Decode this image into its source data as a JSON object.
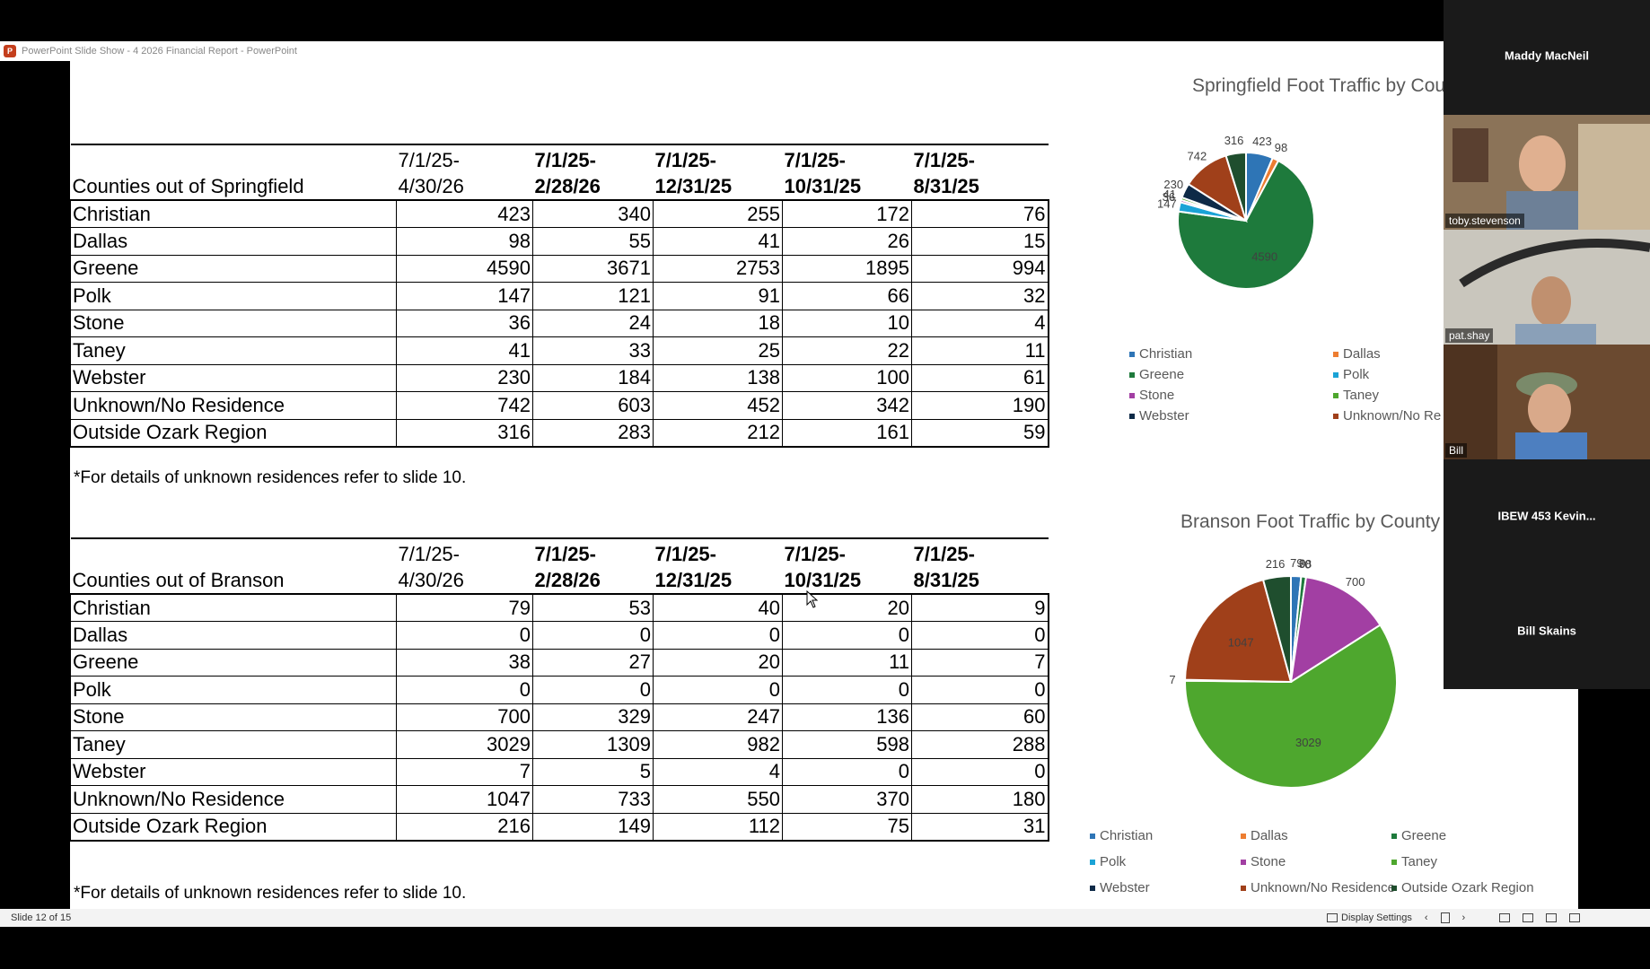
{
  "window": {
    "title": "PowerPoint Slide Show  -  4 2026 Financial Report - PowerPoint"
  },
  "springfield": {
    "header_label": "Counties out of Springfield",
    "periods": [
      [
        "7/1/25-",
        "4/30/26"
      ],
      [
        "7/1/25-",
        "2/28/26"
      ],
      [
        "7/1/25-",
        "12/31/25"
      ],
      [
        "7/1/25-",
        "10/31/25"
      ],
      [
        "7/1/25-",
        "8/31/25"
      ]
    ],
    "rows": [
      {
        "county": "Christian",
        "values": [
          "423",
          "340",
          "255",
          "172",
          "76"
        ]
      },
      {
        "county": "Dallas",
        "values": [
          "98",
          "55",
          "41",
          "26",
          "15"
        ]
      },
      {
        "county": "Greene",
        "values": [
          "4590",
          "3671",
          "2753",
          "1895",
          "994"
        ]
      },
      {
        "county": "Polk",
        "values": [
          "147",
          "121",
          "91",
          "66",
          "32"
        ]
      },
      {
        "county": "Stone",
        "values": [
          "36",
          "24",
          "18",
          "10",
          "4"
        ]
      },
      {
        "county": "Taney",
        "values": [
          "41",
          "33",
          "25",
          "22",
          "11"
        ]
      },
      {
        "county": "Webster",
        "values": [
          "230",
          "184",
          "138",
          "100",
          "61"
        ]
      },
      {
        "county": "Unknown/No Residence",
        "values": [
          "742",
          "603",
          "452",
          "342",
          "190"
        ]
      },
      {
        "county": "Outside Ozark Region",
        "values": [
          "316",
          "283",
          "212",
          "161",
          "59"
        ]
      }
    ],
    "footnote": "*For details of unknown residences refer to slide 10."
  },
  "branson": {
    "header_label": "Counties out of Branson",
    "periods": [
      [
        "7/1/25-",
        "4/30/26"
      ],
      [
        "7/1/25-",
        "2/28/26"
      ],
      [
        "7/1/25-",
        "12/31/25"
      ],
      [
        "7/1/25-",
        "10/31/25"
      ],
      [
        "7/1/25-",
        "8/31/25"
      ]
    ],
    "rows": [
      {
        "county": "Christian",
        "values": [
          "79",
          "53",
          "40",
          "20",
          "9"
        ]
      },
      {
        "county": "Dallas",
        "values": [
          "0",
          "0",
          "0",
          "0",
          "0"
        ]
      },
      {
        "county": "Greene",
        "values": [
          "38",
          "27",
          "20",
          "11",
          "7"
        ]
      },
      {
        "county": "Polk",
        "values": [
          "0",
          "0",
          "0",
          "0",
          "0"
        ]
      },
      {
        "county": "Stone",
        "values": [
          "700",
          "329",
          "247",
          "136",
          "60"
        ]
      },
      {
        "county": "Taney",
        "values": [
          "3029",
          "1309",
          "982",
          "598",
          "288"
        ]
      },
      {
        "county": "Webster",
        "values": [
          "7",
          "5",
          "4",
          "0",
          "0"
        ]
      },
      {
        "county": "Unknown/No Residence",
        "values": [
          "1047",
          "733",
          "550",
          "370",
          "180"
        ]
      },
      {
        "county": "Outside Ozark Region",
        "values": [
          "216",
          "149",
          "112",
          "75",
          "31"
        ]
      }
    ],
    "footnote": "*For details of unknown residences refer to slide 10."
  },
  "chart_data": [
    {
      "type": "pie",
      "title": "Springfield Foot Traffic by Cou",
      "categories": [
        "Christian",
        "Dallas",
        "Greene",
        "Polk",
        "Stone",
        "Taney",
        "Webster",
        "Unknown/No Re",
        "Outside Ozark Region"
      ],
      "values": [
        423,
        98,
        4590,
        147,
        36,
        41,
        230,
        742,
        316
      ],
      "colors": [
        "#2e75b6",
        "#ed7d31",
        "#1e7a3c",
        "#1aa3d6",
        "#a23fa3",
        "#4ea72e",
        "#0e2a47",
        "#a0401a",
        "#1f4e2e"
      ],
      "labels": [
        "423",
        "98",
        "4590",
        "147",
        "36",
        "41",
        "230",
        "742",
        "316"
      ],
      "legend": [
        "Christian",
        "Dallas",
        "Greene",
        "Polk",
        "Stone",
        "Taney",
        "Webster",
        "Unknown/No Re"
      ]
    },
    {
      "type": "pie",
      "title": "Branson Foot Traffic by County",
      "categories": [
        "Christian",
        "Dallas",
        "Greene",
        "Polk",
        "Stone",
        "Taney",
        "Webster",
        "Unknown/No Residence",
        "Outside Ozark Region"
      ],
      "values": [
        79,
        0,
        38,
        0,
        700,
        3029,
        7,
        1047,
        216
      ],
      "colors": [
        "#2e75b6",
        "#ed7d31",
        "#1e7a3c",
        "#1aa3d6",
        "#a23fa3",
        "#4ea72e",
        "#0e2a47",
        "#a0401a",
        "#1f4e2e"
      ],
      "labels": [
        "79",
        "0",
        "38",
        "0",
        "700",
        "3029",
        "7",
        "1047",
        "216"
      ],
      "legend": [
        "Christian",
        "Dallas",
        "Greene",
        "Polk",
        "Stone",
        "Taney",
        "Webster",
        "Unknown/No Residence",
        "Outside Ozark Region"
      ]
    }
  ],
  "participants": [
    {
      "name": "Maddy MacNeil",
      "video": false
    },
    {
      "name": "toby.stevenson",
      "video": true
    },
    {
      "name": "pat.shay",
      "video": true
    },
    {
      "name": "Bill",
      "video": true
    },
    {
      "name": "IBEW 453 Kevin...",
      "video": false
    },
    {
      "name": "Bill Skains",
      "video": false
    }
  ],
  "statusbar": {
    "slide_info": "Slide 12 of 15",
    "display_settings": "Display Settings"
  }
}
